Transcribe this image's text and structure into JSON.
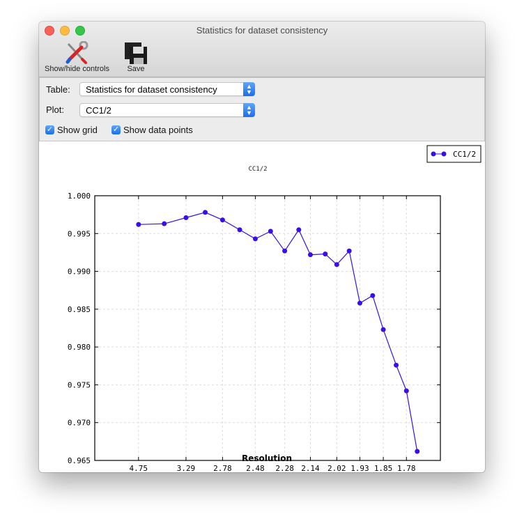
{
  "window": {
    "title": "Statistics for dataset consistency",
    "traffic_light_colors": [
      "#fc605b",
      "#fdbc40",
      "#34c84a"
    ]
  },
  "toolbar": {
    "show_hide_label": "Show/hide controls",
    "show_hide_icon": "tools-icon",
    "save_label": "Save",
    "save_icon": "floppy-disk-icon"
  },
  "controls": {
    "table_label": "Table:",
    "table_value": "Statistics for dataset consistency",
    "plot_label": "Plot:",
    "plot_value": "CC1/2",
    "show_grid_label": "Show grid",
    "show_grid_checked": true,
    "show_points_label": "Show data points",
    "show_points_checked": true
  },
  "chart_data": {
    "type": "line",
    "title": "CC1/2",
    "xlabel": "Resolution",
    "ylabel": "",
    "x_scale": "reciprocal-square (1/d^2)",
    "x_tick_labels": [
      "4.75",
      "3.29",
      "2.78",
      "2.48",
      "2.28",
      "2.14",
      "2.02",
      "1.93",
      "1.85",
      "1.78"
    ],
    "ylim": [
      0.965,
      1.0
    ],
    "y_tick_labels": [
      "1.000",
      "0.995",
      "0.990",
      "0.985",
      "0.980",
      "0.975",
      "0.970",
      "0.965"
    ],
    "grid": true,
    "legend": "top-right",
    "color": "#3a0ee6",
    "series": [
      {
        "name": "CC1/2",
        "x": [
          4.75,
          3.77,
          3.29,
          2.99,
          2.78,
          2.61,
          2.48,
          2.37,
          2.28,
          2.2,
          2.14,
          2.07,
          2.02,
          1.97,
          1.93,
          1.885,
          1.85,
          1.81,
          1.78,
          1.75
        ],
        "y": [
          0.9962,
          0.9963,
          0.9971,
          0.9978,
          0.9968,
          0.9955,
          0.9943,
          0.9953,
          0.9927,
          0.9955,
          0.9922,
          0.9923,
          0.9909,
          0.9927,
          0.9858,
          0.9868,
          0.9823,
          0.9776,
          0.9742,
          0.9662
        ]
      }
    ]
  }
}
